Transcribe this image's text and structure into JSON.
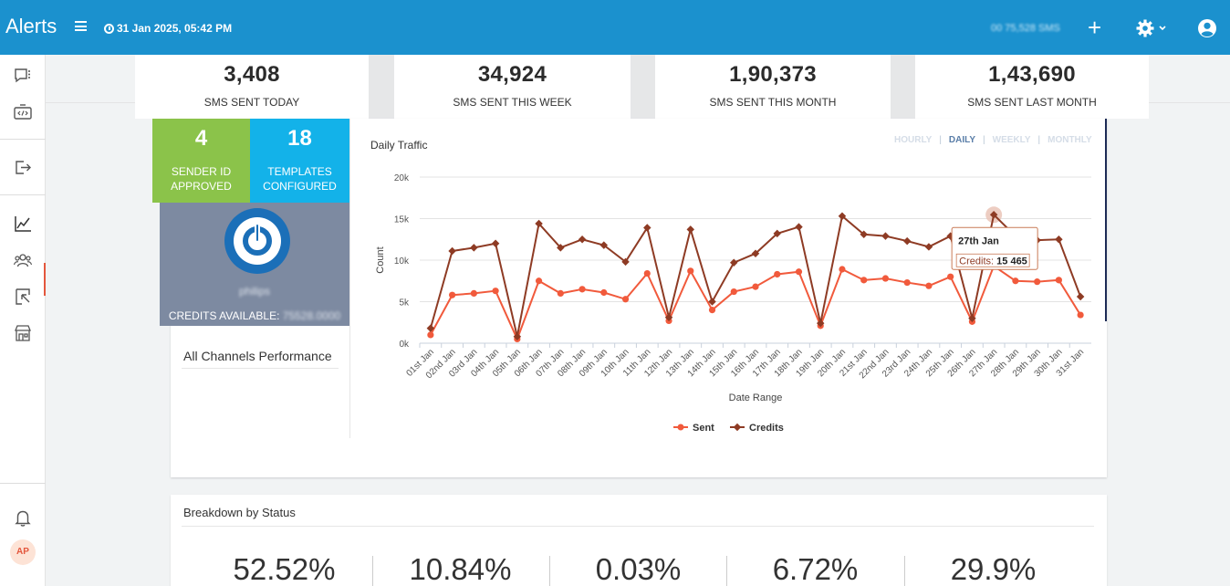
{
  "header": {
    "title": "Alerts",
    "datetime": "31 Jan 2025, 05:42 PM",
    "sms_balance": "00 75,528 SMS"
  },
  "stats": [
    {
      "value": "3,408",
      "label": "SMS SENT TODAY"
    },
    {
      "value": "34,924",
      "label": "SMS SENT THIS WEEK"
    },
    {
      "value": "1,90,373",
      "label": "SMS SENT THIS MONTH"
    },
    {
      "value": "1,43,690",
      "label": "SMS SENT LAST MONTH"
    }
  ],
  "tiles": {
    "sender": {
      "value": "4",
      "label_line1": "SENDER ID",
      "label_line2": "APPROVED",
      "color": "#8bc34a"
    },
    "templates": {
      "value": "18",
      "label_line1": "TEMPLATES",
      "label_line2": "CONFIGURED",
      "color": "#13b2e9"
    }
  },
  "account": {
    "name": "philips",
    "credits_label": "CREDITS AVAILABLE:",
    "credits_value": "75528.0000"
  },
  "panels": {
    "all_channels": "All Channels Performance",
    "breakdown": "Breakdown by Status"
  },
  "range_tabs": [
    {
      "label": "HOURLY",
      "active": false
    },
    {
      "label": "DAILY",
      "active": true
    },
    {
      "label": "WEEKLY",
      "active": false
    },
    {
      "label": "MONTHLY",
      "active": false
    }
  ],
  "breakdown_pcts": [
    "52.52%",
    "10.84%",
    "0.03%",
    "6.72%",
    "29.9%"
  ],
  "tooltip": {
    "date": "27th Jan",
    "label": "Credits:",
    "value": "15 465"
  },
  "colors": {
    "sent": "#f15a3c",
    "credits": "#8e3b24",
    "header": "#1b91ce"
  },
  "chart_data": {
    "type": "line",
    "title": "Daily Traffic",
    "xlabel": "Date Range",
    "ylabel": "Count",
    "ylim": [
      0,
      20000
    ],
    "yticks": [
      "0k",
      "5k",
      "10k",
      "15k",
      "20k"
    ],
    "categories": [
      "01st Jan",
      "02nd Jan",
      "03rd Jan",
      "04th Jan",
      "05th Jan",
      "06th Jan",
      "07th Jan",
      "08th Jan",
      "09th Jan",
      "10th Jan",
      "11th Jan",
      "12th Jan",
      "13th Jan",
      "14th Jan",
      "15th Jan",
      "16th Jan",
      "17th Jan",
      "18th Jan",
      "19th Jan",
      "20th Jan",
      "21st Jan",
      "22nd Jan",
      "23rd Jan",
      "24th Jan",
      "25th Jan",
      "26th Jan",
      "27th Jan",
      "28th Jan",
      "29th Jan",
      "30th Jan",
      "31st Jan"
    ],
    "series": [
      {
        "name": "Sent",
        "values": [
          1000,
          5800,
          6000,
          6300,
          500,
          7500,
          6000,
          6500,
          6100,
          5300,
          8400,
          2700,
          8700,
          4000,
          6200,
          6800,
          8300,
          8600,
          2100,
          8900,
          7600,
          7800,
          7300,
          6900,
          8000,
          2600,
          9300,
          7500,
          7400,
          7600,
          3400
        ]
      },
      {
        "name": "Credits",
        "values": [
          1800,
          11100,
          11500,
          12000,
          800,
          14400,
          11500,
          12500,
          11800,
          9800,
          13900,
          3100,
          13700,
          5000,
          9700,
          10800,
          13200,
          14000,
          2400,
          15300,
          13100,
          12900,
          12300,
          11600,
          12900,
          3000,
          15465,
          12900,
          12400,
          12500,
          5600
        ]
      }
    ],
    "legend": [
      "Sent",
      "Credits"
    ],
    "legend_position": "bottom",
    "grid": true
  }
}
